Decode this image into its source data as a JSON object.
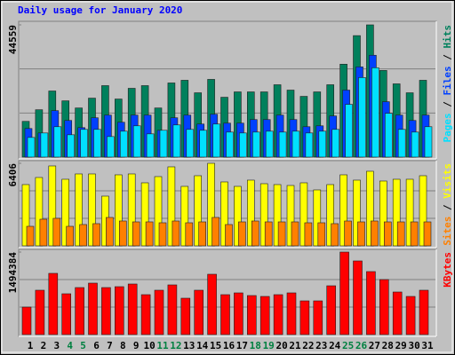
{
  "title": "Daily usage for January 2020",
  "legend_separator": " / ",
  "chart_data": [
    {
      "type": "bar",
      "ylim": [
        0,
        44559
      ],
      "yticks": [
        44559
      ],
      "series": [
        {
          "name": "Hits",
          "color": "#00805c",
          "values": [
            12040,
            15953,
            22274,
            18963,
            16555,
            19866,
            24080,
            19565,
            23177,
            24080,
            16555,
            24983,
            25886,
            21672,
            26187,
            20167,
            21973,
            21973,
            21973,
            24381,
            22575,
            20468,
            21973,
            24381,
            31304,
            40936,
            44559,
            29197,
            24682,
            21672,
            25886
          ]
        },
        {
          "name": "Files",
          "color": "#0040ff",
          "values": [
            9632,
            8127,
            15652,
            12341,
            9933,
            13244,
            14147,
            11739,
            14147,
            14147,
            9030,
            13244,
            14147,
            11137,
            14448,
            11438,
            11438,
            12642,
            12642,
            14147,
            12642,
            10234,
            10535,
            13846,
            22575,
            30401,
            34314,
            18662,
            14147,
            12341,
            14147
          ]
        },
        {
          "name": "Pages",
          "color": "#00e0ff",
          "values": [
            6622,
            8127,
            10234,
            7525,
            9331,
            9331,
            6923,
            8729,
            10535,
            7826,
            9030,
            10836,
            9331,
            9030,
            11137,
            8428,
            8127,
            8428,
            8729,
            8428,
            8729,
            8127,
            8729,
            9331,
            17759,
            26789,
            30100,
            14749,
            9331,
            8428,
            10234
          ]
        }
      ]
    },
    {
      "type": "bar",
      "ylim": [
        0,
        6406
      ],
      "yticks": [
        6406
      ],
      "series": [
        {
          "name": "Visits",
          "color": "#ffff00",
          "values": [
            4754,
            5305,
            6201,
            5168,
            5581,
            5581,
            3858,
            5512,
            5581,
            4892,
            5374,
            6132,
            4616,
            5443,
            6406,
            4961,
            4616,
            5099,
            4823,
            4754,
            4685,
            4892,
            4341,
            4754,
            5512,
            5099,
            5788,
            5030,
            5168,
            5168,
            5443
          ]
        },
        {
          "name": "Sites",
          "color": "#ff8000",
          "values": [
            1516,
            2067,
            2136,
            1516,
            1654,
            1723,
            2205,
            1929,
            1860,
            1860,
            1791,
            1929,
            1791,
            1860,
            2205,
            1654,
            1860,
            1929,
            1860,
            1860,
            1860,
            1791,
            1791,
            1723,
            1929,
            1860,
            1929,
            1860,
            1860,
            1860,
            1860
          ]
        }
      ]
    },
    {
      "type": "bar",
      "ylim": [
        0,
        1494384
      ],
      "yticks": [
        1494384
      ],
      "categories": [
        "1",
        "2",
        "3",
        "4",
        "5",
        "6",
        "7",
        "8",
        "9",
        "10",
        "11",
        "12",
        "13",
        "14",
        "15",
        "16",
        "17",
        "18",
        "19",
        "20",
        "21",
        "22",
        "23",
        "24",
        "25",
        "26",
        "27",
        "28",
        "29",
        "30",
        "31"
      ],
      "category_colors": [
        "#000000",
        "#000000",
        "#000000",
        "#008040",
        "#008040",
        "#000000",
        "#000000",
        "#000000",
        "#000000",
        "#000000",
        "#008040",
        "#008040",
        "#000000",
        "#000000",
        "#000000",
        "#000000",
        "#000000",
        "#008040",
        "#008040",
        "#000000",
        "#000000",
        "#000000",
        "#000000",
        "#000000",
        "#008040",
        "#008040",
        "#000000",
        "#000000",
        "#000000",
        "#000000",
        "#000000"
      ],
      "series": [
        {
          "name": "KBytes",
          "color": "#ff0000",
          "values": [
            498139,
            803450,
            1108761,
            739174,
            851657,
            932002,
            851657,
            867726,
            915933,
            723105,
            803450,
            899864,
            658829,
            803450,
            1092692,
            723105,
            755243,
            707036,
            690967,
            723105,
            755243,
            610622,
            610622,
            883795,
            1494384,
            1333727,
            1140899,
            996278,
            771312,
            690967,
            803450
          ]
        }
      ]
    }
  ]
}
